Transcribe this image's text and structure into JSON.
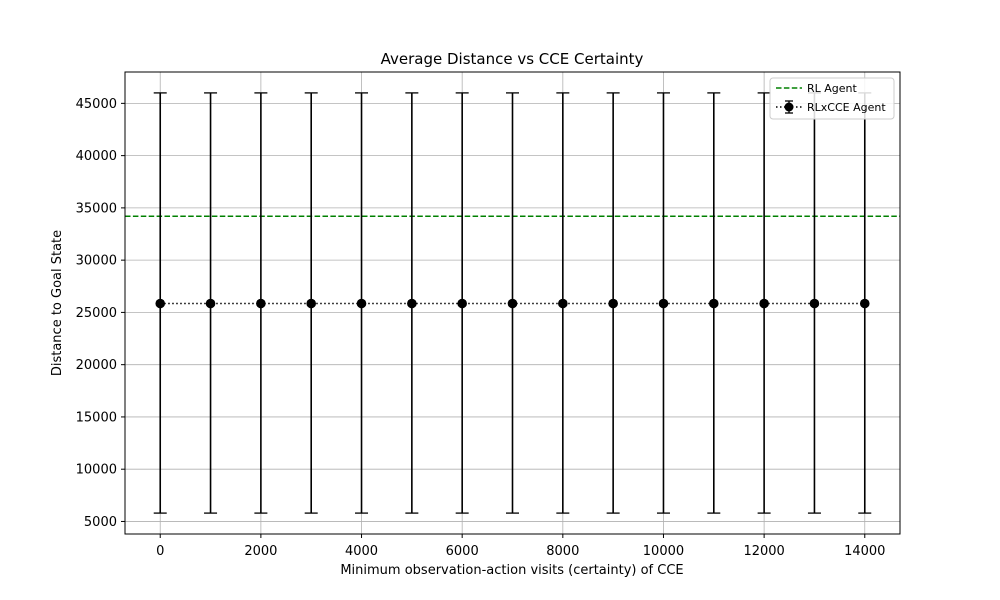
{
  "chart_data": {
    "type": "line",
    "title": "Average Distance vs CCE Certainty",
    "xlabel": "Minimum observation-action visits (certainty) of CCE",
    "ylabel": "Distance to Goal State",
    "xlim": [
      -700,
      14700
    ],
    "ylim": [
      3800,
      48000
    ],
    "xticks": [
      0,
      2000,
      4000,
      6000,
      8000,
      10000,
      12000,
      14000
    ],
    "yticks": [
      5000,
      10000,
      15000,
      20000,
      25000,
      30000,
      35000,
      40000,
      45000
    ],
    "grid": true,
    "legend_position": "top-right",
    "x": [
      0,
      1000,
      2000,
      3000,
      4000,
      5000,
      6000,
      7000,
      8000,
      9000,
      10000,
      11000,
      12000,
      13000,
      14000
    ],
    "series": [
      {
        "name": "RL Agent",
        "kind": "horizontal-line",
        "style": "dashed",
        "color": "#008000",
        "value": 34200
      },
      {
        "name": "RLxCCE Agent",
        "kind": "line-with-errorbars",
        "style": "dotted",
        "marker": "circle",
        "color": "#000000",
        "values": [
          25850,
          25850,
          25850,
          25850,
          25850,
          25850,
          25850,
          25850,
          25850,
          25850,
          25850,
          25850,
          25850,
          25850,
          25850
        ],
        "error_low": [
          5800,
          5800,
          5800,
          5800,
          5800,
          5800,
          5800,
          5800,
          5800,
          5800,
          5800,
          5800,
          5800,
          5800,
          5800
        ],
        "error_high": [
          46000,
          46000,
          46000,
          46000,
          46000,
          46000,
          46000,
          46000,
          46000,
          46000,
          46000,
          46000,
          46000,
          46000,
          46000
        ]
      }
    ]
  }
}
